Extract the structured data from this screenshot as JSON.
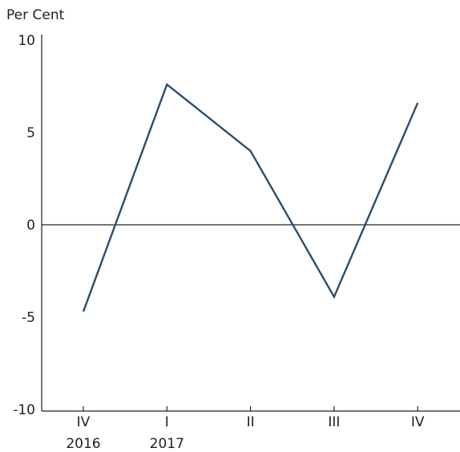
{
  "chart_data": {
    "type": "line",
    "title": "",
    "ylabel": "Per Cent",
    "xlabel": "",
    "categories": [
      "IV",
      "I",
      "II",
      "III",
      "IV"
    ],
    "year_labels": [
      "2016",
      "2017",
      "",
      "",
      ""
    ],
    "series": [
      {
        "values": [
          -4.7,
          7.6,
          4.0,
          -3.9,
          6.6
        ],
        "color": "#2a4e6e"
      }
    ],
    "ylim": [
      -10,
      10
    ],
    "yticks": [
      -10,
      -5,
      0,
      5,
      10
    ],
    "zero_line": true,
    "grid": false,
    "legend": "none"
  }
}
